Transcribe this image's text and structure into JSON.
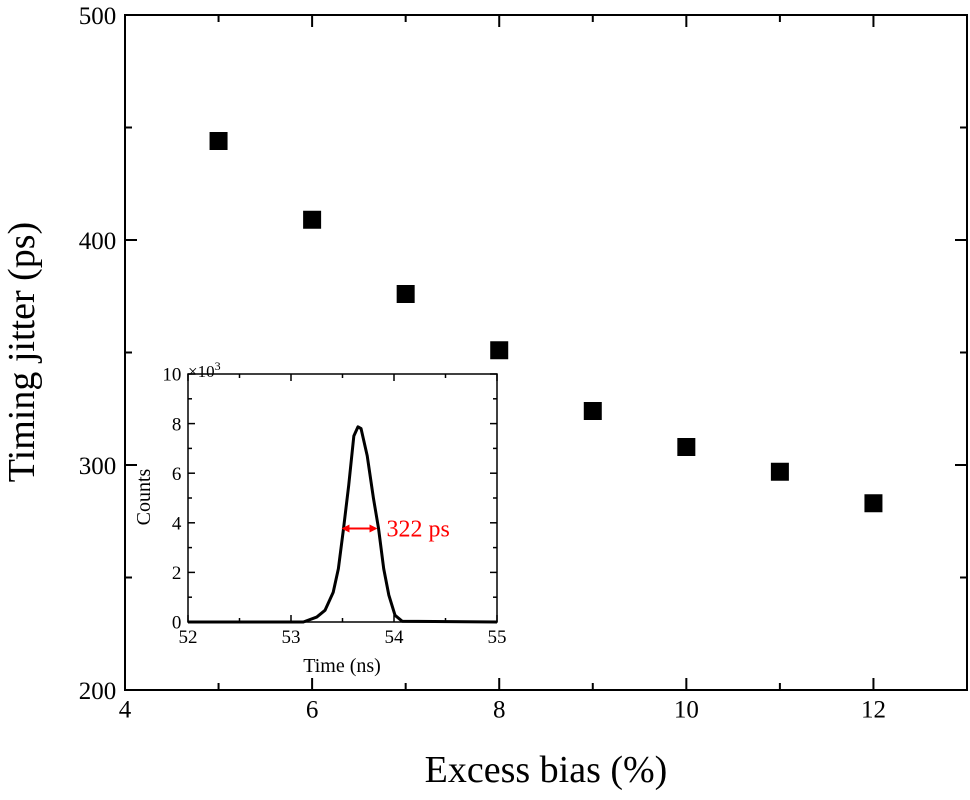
{
  "chart_data": [
    {
      "type": "scatter",
      "xlabel": "Excess bias (%)",
      "ylabel": "Timing jitter (ps)",
      "xlim": [
        4,
        13
      ],
      "ylim": [
        200,
        500
      ],
      "xticks": [
        4,
        6,
        8,
        10,
        12
      ],
      "yticks": [
        200,
        300,
        400,
        500
      ],
      "grid": false,
      "marker": "square",
      "color": "#000000",
      "x": [
        5,
        6,
        7,
        8,
        9,
        10,
        11,
        12
      ],
      "y": [
        444,
        409,
        376,
        351,
        324,
        308,
        297,
        283
      ]
    },
    {
      "type": "line",
      "inset": true,
      "xlabel": "Time (ns)",
      "ylabel": "Counts",
      "y_multiplier": "×10",
      "y_multiplier_exp": "3",
      "xlim": [
        52,
        55
      ],
      "ylim": [
        0,
        10
      ],
      "xticks": [
        52,
        53,
        54,
        55
      ],
      "yticks": [
        0,
        2,
        4,
        6,
        8,
        10
      ],
      "grid": false,
      "color": "#000000",
      "x": [
        52,
        53.12,
        53.25,
        53.33,
        53.41,
        53.46,
        53.51,
        53.56,
        53.61,
        53.65,
        53.68,
        53.74,
        53.8,
        53.85,
        53.9,
        53.95,
        54.01,
        54.08,
        55
      ],
      "y": [
        0,
        0,
        0.2,
        0.47,
        1.2,
        2.15,
        3.77,
        5.5,
        7.5,
        7.87,
        7.8,
        6.7,
        5.0,
        3.77,
        2.15,
        1.08,
        0.27,
        0.03,
        0
      ],
      "annotation": {
        "text": "322 ps",
        "color": "#ff0000",
        "x_from": 53.49,
        "x_to": 53.84,
        "y": 3.77
      }
    }
  ]
}
